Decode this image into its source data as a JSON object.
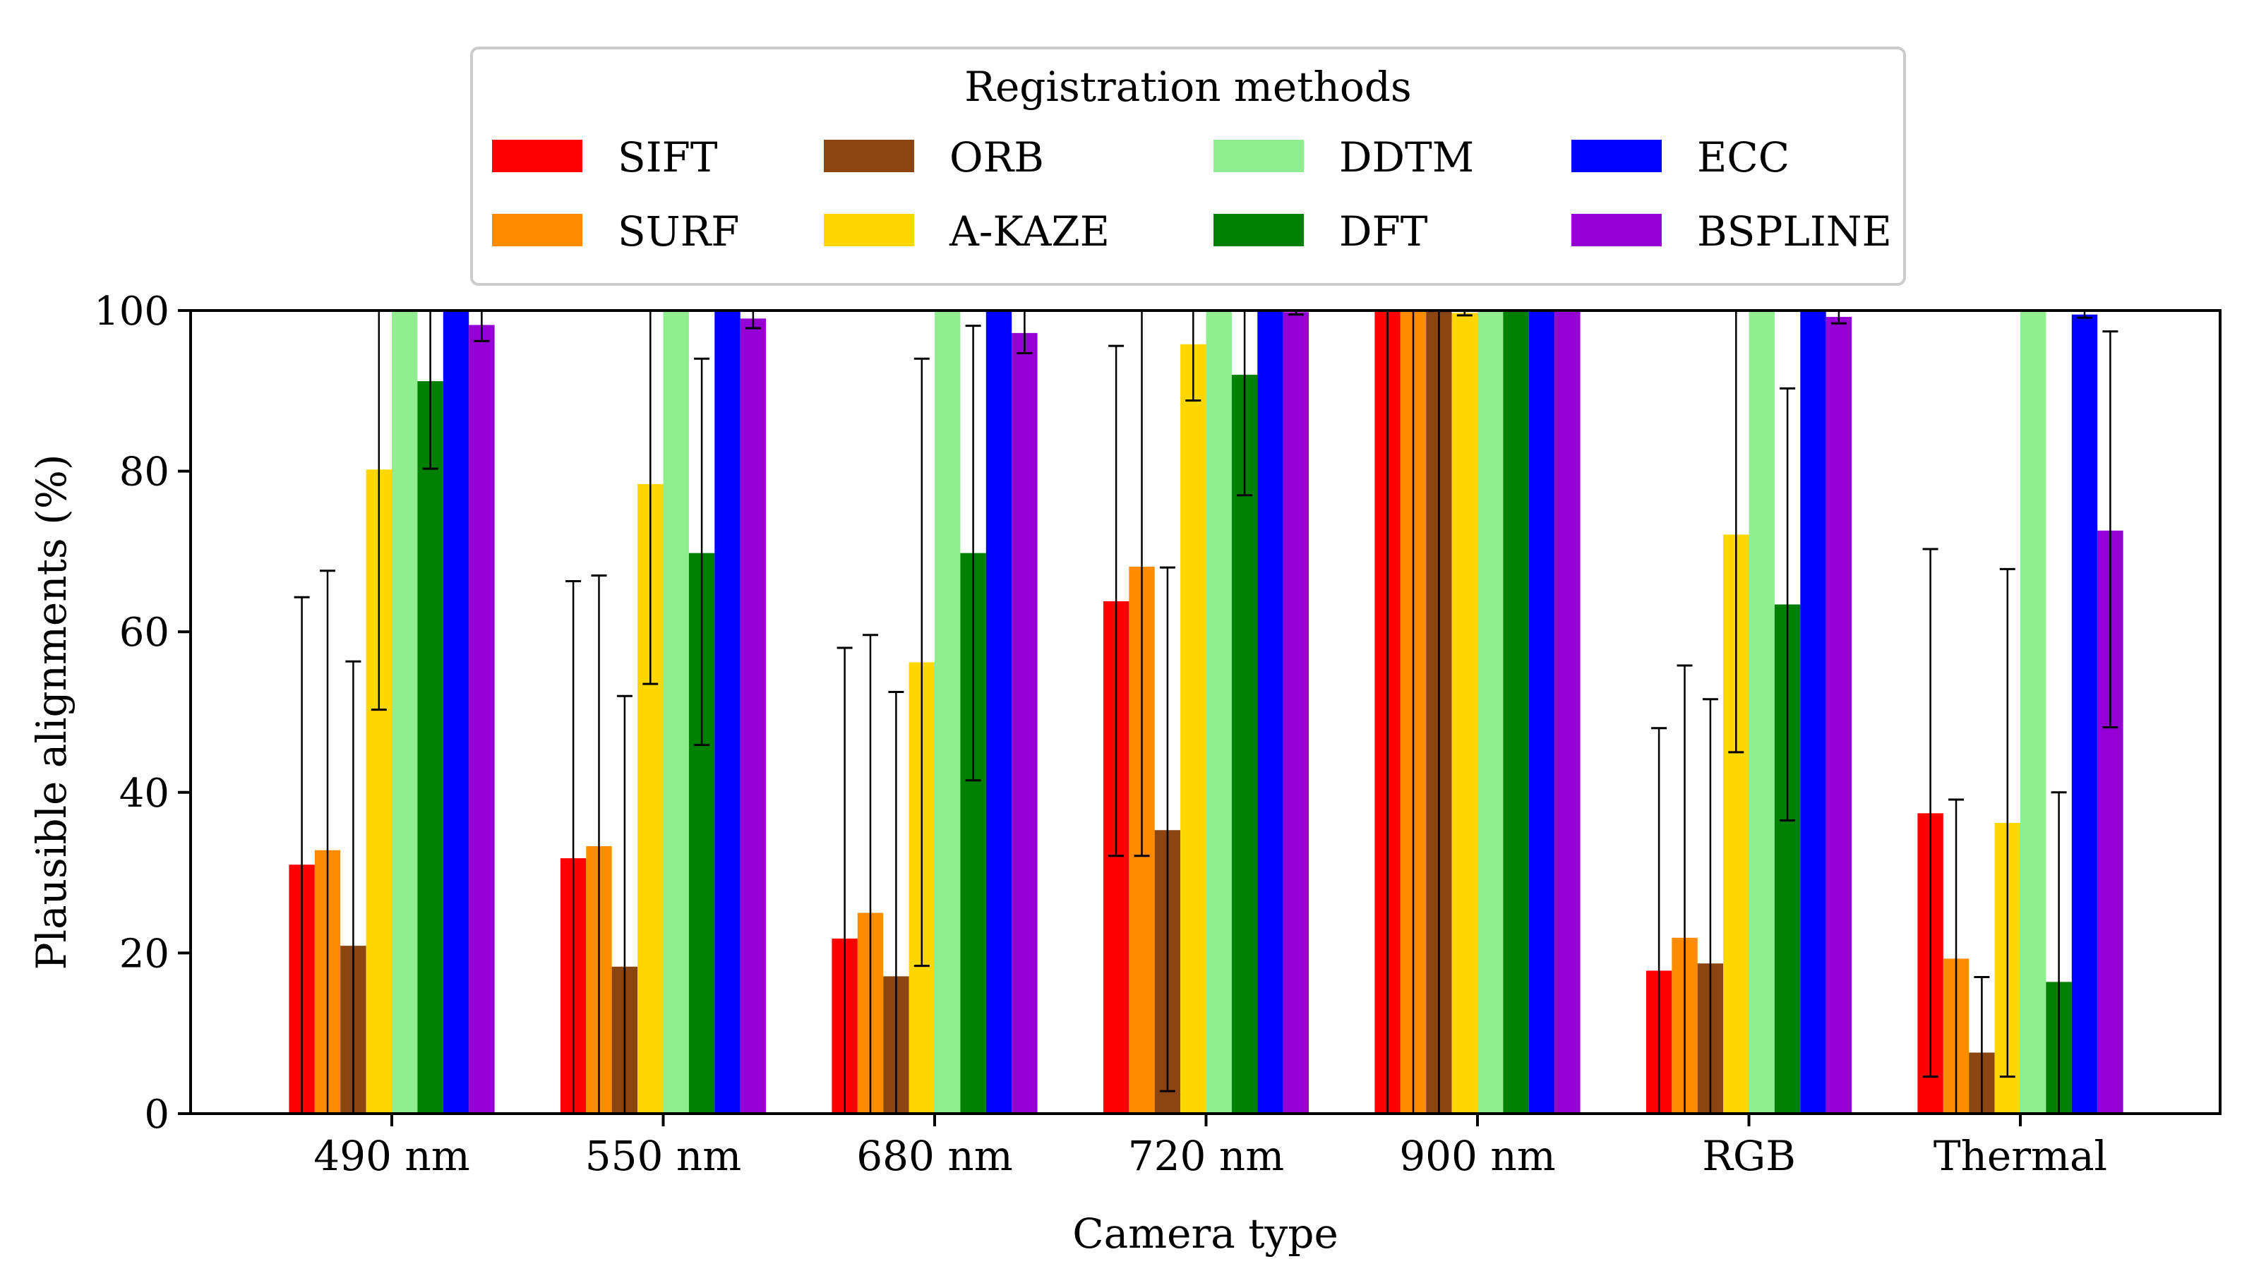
{
  "chart_data": {
    "type": "bar",
    "xlabel": "Camera type",
    "ylabel": "Plausible alignments (%)",
    "ylim": [
      0,
      100
    ],
    "yticks": [
      0,
      20,
      40,
      60,
      80,
      100
    ],
    "grid": false,
    "legend": {
      "title": "Registration methods",
      "placement": "top-center",
      "columns": 4
    },
    "categories": [
      "490 nm",
      "550 nm",
      "680 nm",
      "720 nm",
      "900 nm",
      "RGB",
      "Thermal"
    ],
    "series": [
      {
        "name": "SIFT",
        "color": "#ff0000",
        "values": [
          31,
          31.8,
          21.8,
          63.8,
          100,
          17.8,
          37.4
        ],
        "err_low": [
          0,
          0,
          0,
          32.1,
          0,
          0,
          4.6
        ],
        "err_high": [
          64.3,
          66.3,
          58,
          95.6,
          100,
          48,
          70.3
        ]
      },
      {
        "name": "SURF",
        "color": "#ff8c00",
        "values": [
          32.8,
          33.3,
          25,
          68.1,
          100,
          21.9,
          19.3
        ],
        "err_low": [
          0,
          0,
          0,
          32.1,
          0,
          0,
          0
        ],
        "err_high": [
          67.6,
          67,
          59.6,
          100,
          100,
          55.8,
          39.1
        ]
      },
      {
        "name": "ORB",
        "color": "#8b4513",
        "values": [
          20.9,
          18.3,
          17.1,
          35.3,
          100,
          18.7,
          7.6
        ],
        "err_low": [
          0,
          0,
          0,
          2.8,
          0,
          0,
          0
        ],
        "err_high": [
          56.3,
          52,
          52.5,
          68,
          100,
          51.6,
          17
        ]
      },
      {
        "name": "A-KAZE",
        "color": "#ffd700",
        "values": [
          80.2,
          78.4,
          56.2,
          95.8,
          99.7,
          72.1,
          36.2
        ],
        "err_low": [
          50.3,
          53.5,
          18.4,
          88.8,
          99.4,
          45,
          4.6
        ],
        "err_high": [
          100,
          100,
          94,
          100,
          100,
          100,
          67.8
        ]
      },
      {
        "name": "DDTM",
        "color": "#90ee90",
        "values": [
          100,
          100,
          100,
          100,
          100,
          100,
          100
        ],
        "err_low": [
          100,
          100,
          100,
          100,
          100,
          100,
          100
        ],
        "err_high": [
          100,
          100,
          100,
          100,
          100,
          100,
          100
        ]
      },
      {
        "name": "DFT",
        "color": "#008000",
        "values": [
          91.2,
          69.8,
          69.8,
          92,
          100,
          63.4,
          16.4
        ],
        "err_low": [
          80.3,
          45.9,
          41.5,
          77,
          100,
          36.5,
          0
        ],
        "err_high": [
          100,
          94,
          98.1,
          100,
          100,
          90.3,
          40
        ]
      },
      {
        "name": "ECC",
        "color": "#0000ff",
        "values": [
          100,
          100,
          100,
          100,
          100,
          100,
          99.5
        ],
        "err_low": [
          100,
          100,
          100,
          100,
          100,
          100,
          99.1
        ],
        "err_high": [
          100,
          100,
          100,
          100,
          100,
          100,
          100
        ]
      },
      {
        "name": "BSPLINE",
        "color": "#9400d3",
        "values": [
          98.2,
          99,
          97.2,
          99.8,
          100,
          99.2,
          72.6
        ],
        "err_low": [
          96.2,
          97.8,
          94.7,
          99.5,
          100,
          98.4,
          48.1
        ],
        "err_high": [
          100,
          100,
          100,
          100,
          100,
          100,
          97.4
        ]
      }
    ]
  }
}
